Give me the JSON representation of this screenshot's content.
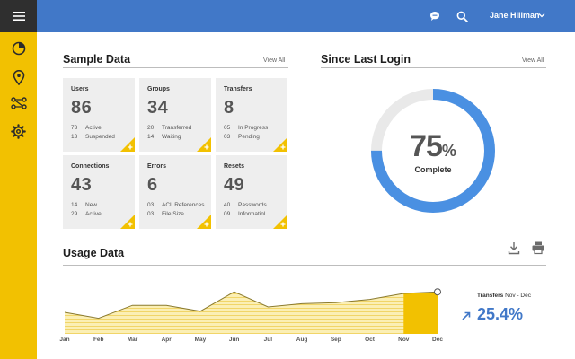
{
  "topbar": {
    "user_name": "Jane Hillman",
    "icons": [
      "menu-icon",
      "chat-icon",
      "search-icon",
      "chevron-down-icon"
    ]
  },
  "sidebar": {
    "items": [
      {
        "icon": "pie-chart-icon"
      },
      {
        "icon": "location-pin-icon"
      },
      {
        "icon": "flow-icon"
      },
      {
        "icon": "gear-icon"
      }
    ]
  },
  "sample_data": {
    "title": "Sample Data",
    "view_all": "View All",
    "tiles": [
      {
        "title": "Users",
        "value": "86",
        "rows": [
          {
            "n": "73",
            "label": "Active"
          },
          {
            "n": "13",
            "label": "Suspended"
          }
        ]
      },
      {
        "title": "Groups",
        "value": "34",
        "rows": [
          {
            "n": "20",
            "label": "Transferred"
          },
          {
            "n": "14",
            "label": "Waiting"
          }
        ]
      },
      {
        "title": "Transfers",
        "value": "8",
        "rows": [
          {
            "n": "05",
            "label": "In Progress"
          },
          {
            "n": "03",
            "label": "Pending"
          }
        ]
      },
      {
        "title": "Connections",
        "value": "43",
        "rows": [
          {
            "n": "14",
            "label": "New"
          },
          {
            "n": "29",
            "label": "Active"
          }
        ]
      },
      {
        "title": "Errors",
        "value": "6",
        "rows": [
          {
            "n": "03",
            "label": "ACL References"
          },
          {
            "n": "03",
            "label": "File Size"
          }
        ]
      },
      {
        "title": "Resets",
        "value": "49",
        "rows": [
          {
            "n": "40",
            "label": "Passwords"
          },
          {
            "n": "09",
            "label": "Informatinl"
          }
        ]
      }
    ]
  },
  "since_last_login": {
    "title": "Since Last Login",
    "view_all": "View All",
    "percent": "75",
    "percent_symbol": "%",
    "progress": 0.75,
    "label": "Complete"
  },
  "usage": {
    "title": "Usage Data",
    "icons": [
      "download-icon",
      "print-icon"
    ],
    "transfers_label": "Transfers",
    "transfers_period": "Nov - Dec",
    "transfers_change": "25.4%"
  },
  "chart_data": {
    "type": "area",
    "categories": [
      "Jan",
      "Feb",
      "Mar",
      "Apr",
      "May",
      "Jun",
      "Jul",
      "Aug",
      "Sep",
      "Oct",
      "Nov",
      "Dec"
    ],
    "values": [
      0.4,
      0.29,
      0.53,
      0.53,
      0.42,
      0.78,
      0.5,
      0.56,
      0.58,
      0.64,
      0.75,
      0.78
    ],
    "highlight_range": [
      "Nov",
      "Dec"
    ],
    "colors": {
      "fill": "#fbefb5",
      "stripe": "#f1d568",
      "line": "#8a7a2e",
      "highlight": "#f2c101"
    }
  },
  "colors": {
    "topbar": "#4178c8",
    "rail": "#f2c101",
    "menu_block": "#2f2f2f",
    "accent_blue": "#4178c8",
    "donut_track": "#e9e9e9",
    "tile_bg": "#eeeeee"
  }
}
